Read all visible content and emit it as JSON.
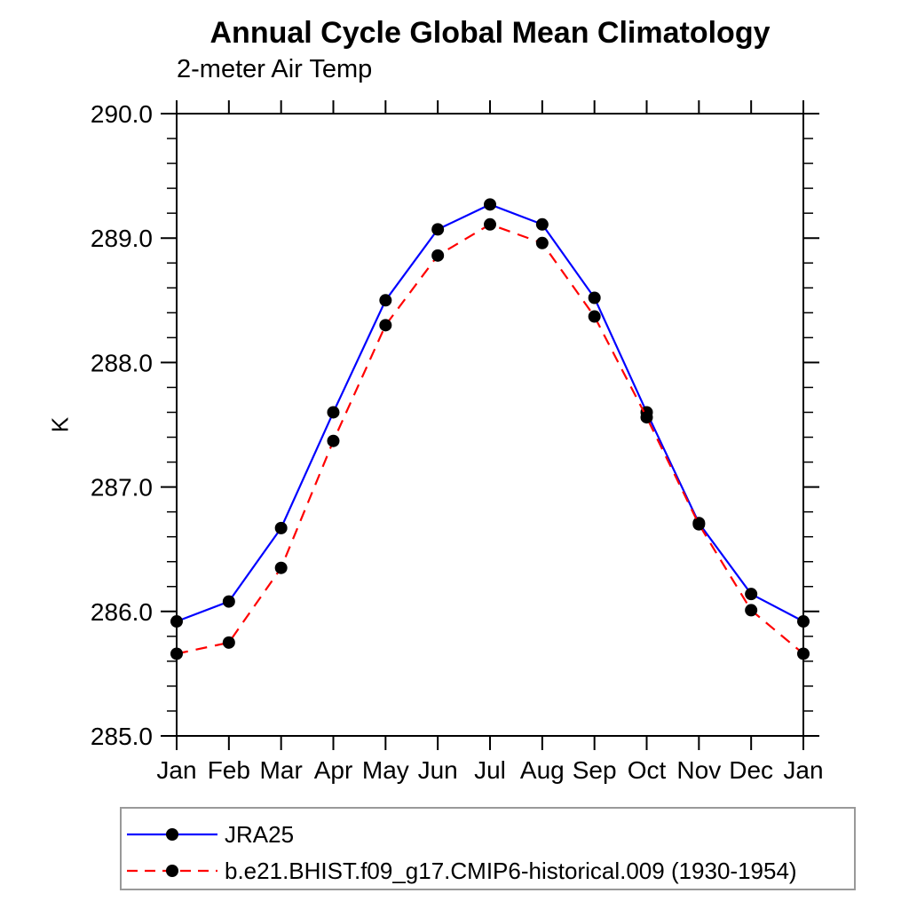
{
  "header": {
    "title": "Annual Cycle Global Mean Climatology",
    "subtitle": "2-meter Air Temp"
  },
  "chart_data": {
    "type": "line",
    "title": "Annual Cycle Global Mean Climatology",
    "subtitle": "2-meter Air Temp",
    "xlabel": "",
    "ylabel": "K",
    "x_categories": [
      "Jan",
      "Feb",
      "Mar",
      "Apr",
      "May",
      "Jun",
      "Jul",
      "Aug",
      "Sep",
      "Oct",
      "Nov",
      "Dec",
      "Jan"
    ],
    "ylim": [
      285.0,
      290.0
    ],
    "y_major_ticks": [
      285.0,
      286.0,
      287.0,
      288.0,
      289.0,
      290.0
    ],
    "y_tick_labels": [
      "285.0",
      "286.0",
      "287.0",
      "288.0",
      "289.0",
      "290.0"
    ],
    "y_minor_step": 0.2,
    "grid": false,
    "legend_position": "bottom-left-box",
    "frame_color": "#000000",
    "marker": {
      "shape": "circle",
      "color": "#000000",
      "radius": 7
    },
    "series": [
      {
        "name": "JRA25",
        "color": "#0000ff",
        "style": "solid",
        "values": [
          285.92,
          286.08,
          286.67,
          287.6,
          288.5,
          289.07,
          289.27,
          289.11,
          288.52,
          287.6,
          286.71,
          286.14,
          285.92
        ]
      },
      {
        "name": "b.e21.BHIST.f09_g17.CMIP6-historical.009 (1930-1954)",
        "color": "#ff0000",
        "style": "dashed",
        "values": [
          285.66,
          285.75,
          286.35,
          287.37,
          288.3,
          288.86,
          289.11,
          288.96,
          288.37,
          287.56,
          286.7,
          286.01,
          285.66
        ]
      }
    ]
  }
}
